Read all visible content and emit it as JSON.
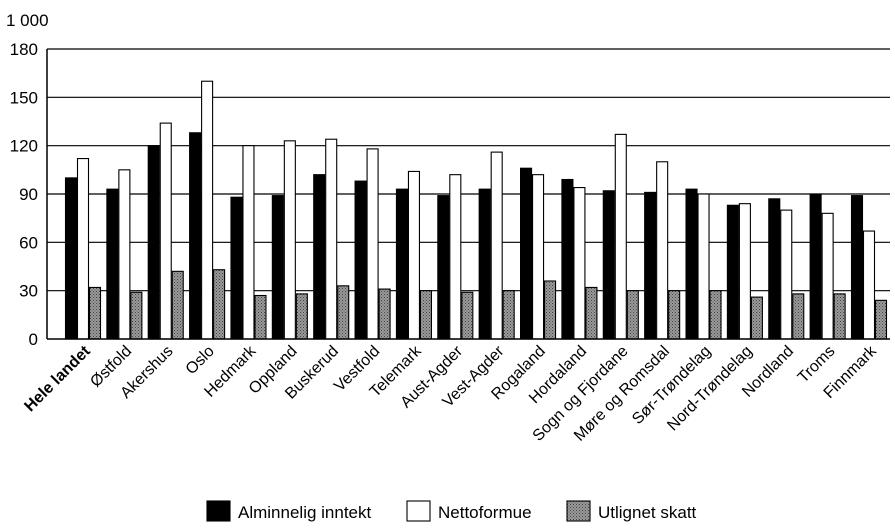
{
  "chart_data": {
    "type": "bar",
    "unit_label": "1 000",
    "ylim": [
      0,
      180
    ],
    "yticks": [
      0,
      30,
      60,
      90,
      120,
      150,
      180
    ],
    "grid": true,
    "legend_position": "bottom",
    "categories": [
      "Hele landet",
      "Østfold",
      "Akershus",
      "Oslo",
      "Hedmark",
      "Oppland",
      "Buskerud",
      "Vestfold",
      "Telemark",
      "Aust-Agder",
      "Vest-Agder",
      "Rogaland",
      "Hordaland",
      "Sogn og Fjordane",
      "Møre og Romsdal",
      "Sør-Trøndelag",
      "Nord-Trøndelag",
      "Nordland",
      "Troms",
      "Finnmark"
    ],
    "bold_categories": [
      "Hele landet"
    ],
    "series": [
      {
        "name": "Alminnelig inntekt",
        "color": "#000000",
        "pattern": "solid",
        "values": [
          100,
          93,
          120,
          128,
          88,
          89,
          102,
          98,
          93,
          89,
          93,
          106,
          99,
          92,
          91,
          93,
          83,
          87,
          90,
          89
        ]
      },
      {
        "name": "Nettoformue",
        "color": "#ffffff",
        "pattern": "outline",
        "values": [
          112,
          105,
          134,
          160,
          120,
          123,
          124,
          118,
          104,
          102,
          116,
          102,
          94,
          127,
          110,
          90,
          84,
          80,
          78,
          67
        ]
      },
      {
        "name": "Utlignet skatt",
        "color": "#8a8a8a",
        "pattern": "dotted-gray",
        "values": [
          32,
          29,
          42,
          43,
          27,
          28,
          33,
          31,
          30,
          29,
          30,
          36,
          32,
          30,
          30,
          30,
          26,
          28,
          28,
          24
        ]
      }
    ]
  }
}
